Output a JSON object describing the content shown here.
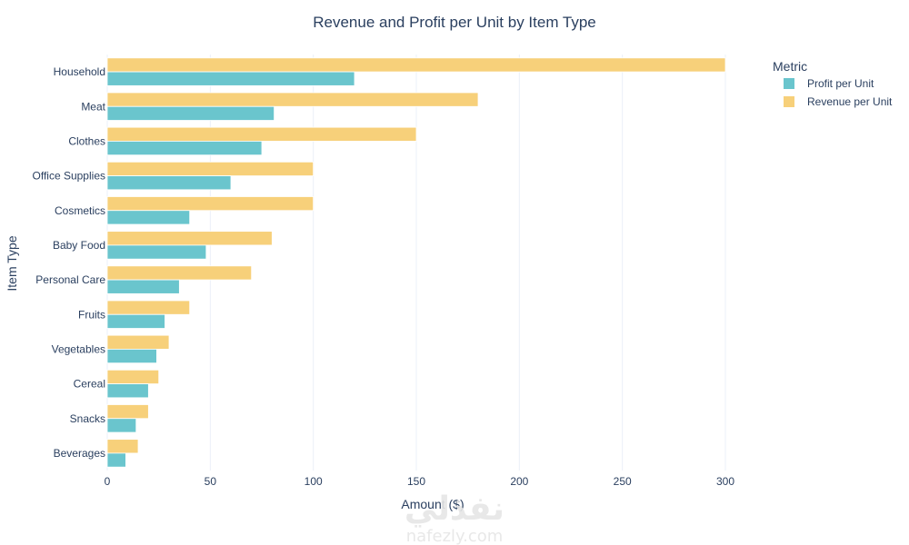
{
  "watermark": {
    "arabic": "نفذلي",
    "latin": "nafezly.com"
  },
  "colors": {
    "profit": "#6ac5cd",
    "revenue": "#f7d07a",
    "text": "#2a3f5f",
    "grid": "#ebf0f8"
  },
  "chart_data": {
    "type": "bar",
    "orientation": "horizontal",
    "title": "Revenue and Profit per Unit by Item Type",
    "xlabel": "Amount ($)",
    "ylabel": "Item Type",
    "xlim": [
      0,
      300
    ],
    "xticks": [
      0,
      50,
      100,
      150,
      200,
      250,
      300
    ],
    "legend": {
      "title": "Metric",
      "placement": "top-right"
    },
    "categories": [
      "Household",
      "Meat",
      "Clothes",
      "Office Supplies",
      "Cosmetics",
      "Baby Food",
      "Personal Care",
      "Fruits",
      "Vegetables",
      "Cereal",
      "Snacks",
      "Beverages"
    ],
    "series": [
      {
        "name": "Profit per Unit",
        "color": "#6ac5cd",
        "values": [
          120,
          81,
          75,
          60,
          40,
          48,
          35,
          28,
          24,
          20,
          14,
          9
        ]
      },
      {
        "name": "Revenue per Unit",
        "color": "#f7d07a",
        "values": [
          300,
          180,
          150,
          100,
          100,
          80,
          70,
          40,
          30,
          25,
          20,
          15
        ]
      }
    ]
  }
}
